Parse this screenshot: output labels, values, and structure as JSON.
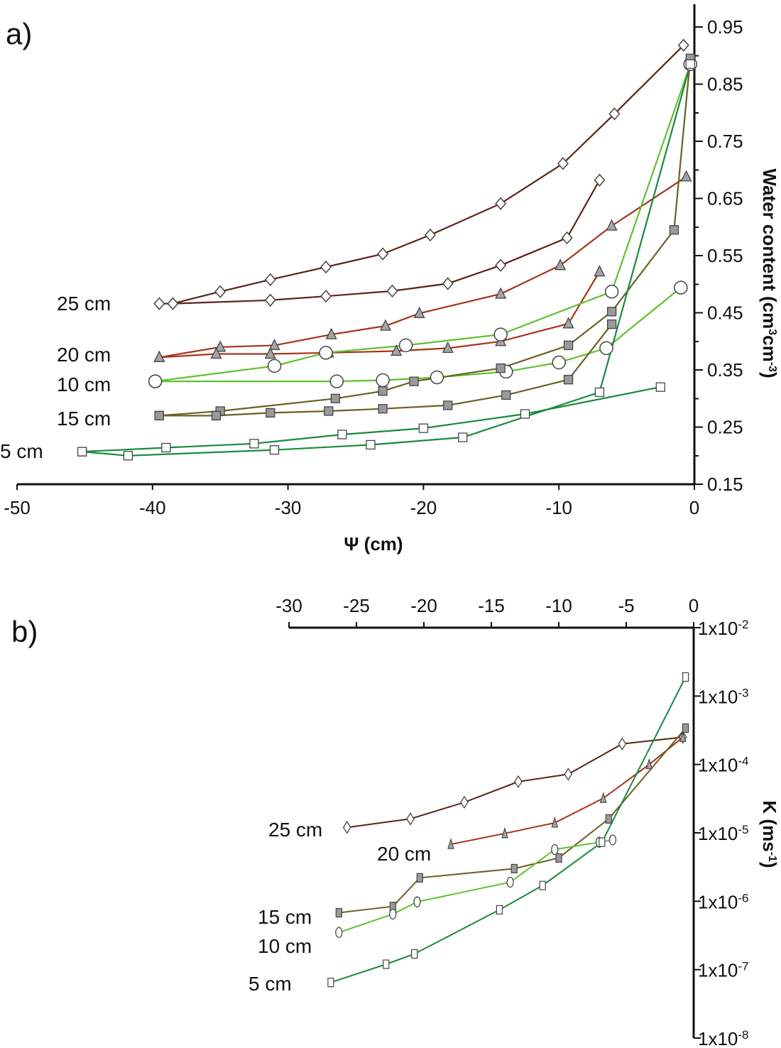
{
  "chart_data": [
    {
      "panel_label": "a)",
      "type": "line",
      "xlabel": "Ψ (cm)",
      "ylabel": "Water content (cm3cm-3)",
      "ylabel_parts": {
        "main": "Water content (cm",
        "sup1": "3",
        "mid": "cm",
        "sup2": "-3",
        "end": ")"
      },
      "xlim": [
        -50,
        0
      ],
      "ylim": [
        0.15,
        0.99
      ],
      "x_ticks": [
        "-50",
        "-40",
        "-30",
        "-20",
        "-10",
        "0"
      ],
      "y_ticks": [
        "0.15",
        "0.25",
        "0.35",
        "0.45",
        "0.55",
        "0.65",
        "0.75",
        "0.85",
        "0.95"
      ],
      "y_axis_position": "right",
      "series": [
        {
          "name": "25 cm",
          "color": "#5a2318",
          "marker": "diamond",
          "lines": [
            {
              "x": [
                -39.5,
                -38.5,
                -35,
                -31.3,
                -27.2,
                -23,
                -19.5,
                -14.3,
                -9.7,
                -5.9,
                -0.8
              ],
              "y": [
                0.466,
                0.466,
                0.487,
                0.508,
                0.53,
                0.553,
                0.586,
                0.641,
                0.711,
                0.798,
                0.918
              ]
            },
            {
              "x": [
                -38.5,
                -31.3,
                -27.2,
                -22.3,
                -18.2,
                -14.3,
                -9.4,
                -7
              ],
              "y": [
                0.466,
                0.472,
                0.479,
                0.488,
                0.501,
                0.533,
                0.581,
                0.682
              ]
            }
          ]
        },
        {
          "name": "20 cm",
          "color": "#a8321a",
          "marker": "triangle",
          "lines": [
            {
              "x": [
                -39.5,
                -35,
                -31,
                -26.8,
                -22.8,
                -20.3,
                -14.3,
                -9.9,
                -6.1,
                -0.6
              ],
              "y": [
                0.372,
                0.39,
                0.393,
                0.412,
                0.427,
                0.449,
                0.483,
                0.533,
                0.602,
                0.688
              ]
            },
            {
              "x": [
                -39.5,
                -35.3,
                -31.3,
                -27,
                -22,
                -18.2,
                -14.3,
                -9.3,
                -7
              ],
              "y": [
                0.372,
                0.378,
                0.378,
                0.38,
                0.383,
                0.388,
                0.4,
                0.431,
                0.522
              ]
            }
          ]
        },
        {
          "name": "10 cm",
          "color": "#5ec22e",
          "marker": "circle",
          "lines": [
            {
              "x": [
                -39.8,
                -31,
                -27.2,
                -21.3,
                -14.3,
                -6.1,
                -0.3
              ],
              "y": [
                0.33,
                0.357,
                0.38,
                0.393,
                0.412,
                0.487,
                0.885
              ]
            },
            {
              "x": [
                -39.8,
                -26.4,
                -23,
                -19,
                -13.9,
                -10,
                -6.5,
                -1
              ],
              "y": [
                0.33,
                0.33,
                0.332,
                0.337,
                0.347,
                0.363,
                0.388,
                0.494
              ]
            }
          ]
        },
        {
          "name": "15 cm",
          "color": "#6b6125",
          "marker": "filled-square",
          "lines": [
            {
              "x": [
                -39.5,
                -35,
                -26.5,
                -23,
                -20.7,
                -14.3,
                -9.3,
                -6.1,
                -1.5,
                -0.3
              ],
              "y": [
                0.27,
                0.278,
                0.3,
                0.313,
                0.33,
                0.353,
                0.393,
                0.452,
                0.595,
                0.895
              ]
            },
            {
              "x": [
                -39.5,
                -35.3,
                -31.3,
                -27,
                -23,
                -18.2,
                -13.9,
                -9.3,
                -6.1
              ],
              "y": [
                0.27,
                0.27,
                0.275,
                0.278,
                0.282,
                0.288,
                0.306,
                0.333,
                0.43
              ]
            }
          ]
        },
        {
          "name": "5 cm",
          "color": "#1a8a3c",
          "marker": "square",
          "lines": [
            {
              "x": [
                -45.2,
                -39,
                -32.5,
                -26,
                -20,
                -12.5,
                -2.5
              ],
              "y": [
                0.207,
                0.214,
                0.221,
                0.237,
                0.248,
                0.273,
                0.32
              ]
            },
            {
              "x": [
                -45.2,
                -41.8,
                -31,
                -23.9,
                -17.1,
                -7,
                -0.3
              ],
              "y": [
                0.207,
                0.2,
                0.21,
                0.219,
                0.232,
                0.311,
                0.885
              ]
            }
          ]
        }
      ]
    },
    {
      "panel_label": "b)",
      "type": "line",
      "xlabel": "",
      "ylabel": "K (ms-1)",
      "ylabel_parts": {
        "main": "K (ms",
        "sup": "-1",
        "end": ")"
      },
      "xlim": [
        -30,
        0
      ],
      "y_log_range": [
        -8,
        -2
      ],
      "y_scale": "log",
      "x_ticks": [
        "-30",
        "-25",
        "-20",
        "-15",
        "-10",
        "-5",
        "0"
      ],
      "x_axis_position": "top",
      "y_axis_position": "right",
      "y_ticks": [
        {
          "base": "1x10",
          "exp": "-2",
          "e": -2
        },
        {
          "base": "1x10",
          "exp": "-3",
          "e": -3
        },
        {
          "base": "1x10",
          "exp": "-4",
          "e": -4
        },
        {
          "base": "1x10",
          "exp": "-5",
          "e": -5
        },
        {
          "base": "1x10",
          "exp": "-6",
          "e": -6
        },
        {
          "base": "1x10",
          "exp": "-7",
          "e": -7
        },
        {
          "base": "1x10",
          "exp": "-8",
          "e": -8
        }
      ],
      "series": [
        {
          "name": "25 cm",
          "color": "#5a2318",
          "marker": "diamond",
          "x": [
            -25.7,
            -21,
            -17,
            -13,
            -9.3,
            -5.3,
            -0.8
          ],
          "y": [
            1.2e-05,
            1.6e-05,
            2.8e-05,
            5.6e-05,
            7.2e-05,
            0.0002,
            0.00025
          ]
        },
        {
          "name": "20 cm",
          "color": "#a8321a",
          "marker": "triangle",
          "x": [
            -18,
            -14,
            -10.3,
            -6.7,
            -3.3,
            -0.8
          ],
          "y": [
            6.8e-06,
            9.8e-06,
            1.4e-05,
            3.2e-05,
            0.0001,
            0.00025
          ]
        },
        {
          "name": "15 cm",
          "color": "#6b6125",
          "marker": "filled-square",
          "x": [
            -26.3,
            -22.3,
            -20.3,
            -13.3,
            -10,
            -6.3,
            -0.6
          ],
          "y": [
            6.8e-07,
            8.4e-07,
            2.2e-06,
            3e-06,
            4.3e-06,
            1.6e-05,
            0.00034
          ]
        },
        {
          "name": "10 cm",
          "color": "#5ec22e",
          "marker": "circle",
          "x": [
            -26.3,
            -22.3,
            -20.5,
            -13.6,
            -10.3,
            -7,
            -6
          ],
          "y": [
            3.5e-07,
            6.5e-07,
            9.8e-07,
            1.9e-06,
            5.7e-06,
            7.3e-06,
            7.9e-06
          ]
        },
        {
          "name": "5 cm",
          "color": "#1a8a3c",
          "marker": "square",
          "x": [
            -26.9,
            -22.8,
            -20.7,
            -14.4,
            -11.2,
            -6.8,
            -0.6
          ],
          "y": [
            6.5e-08,
            1.2e-07,
            1.7e-07,
            7.5e-07,
            1.7e-06,
            7.3e-06,
            0.0019
          ]
        }
      ]
    }
  ]
}
